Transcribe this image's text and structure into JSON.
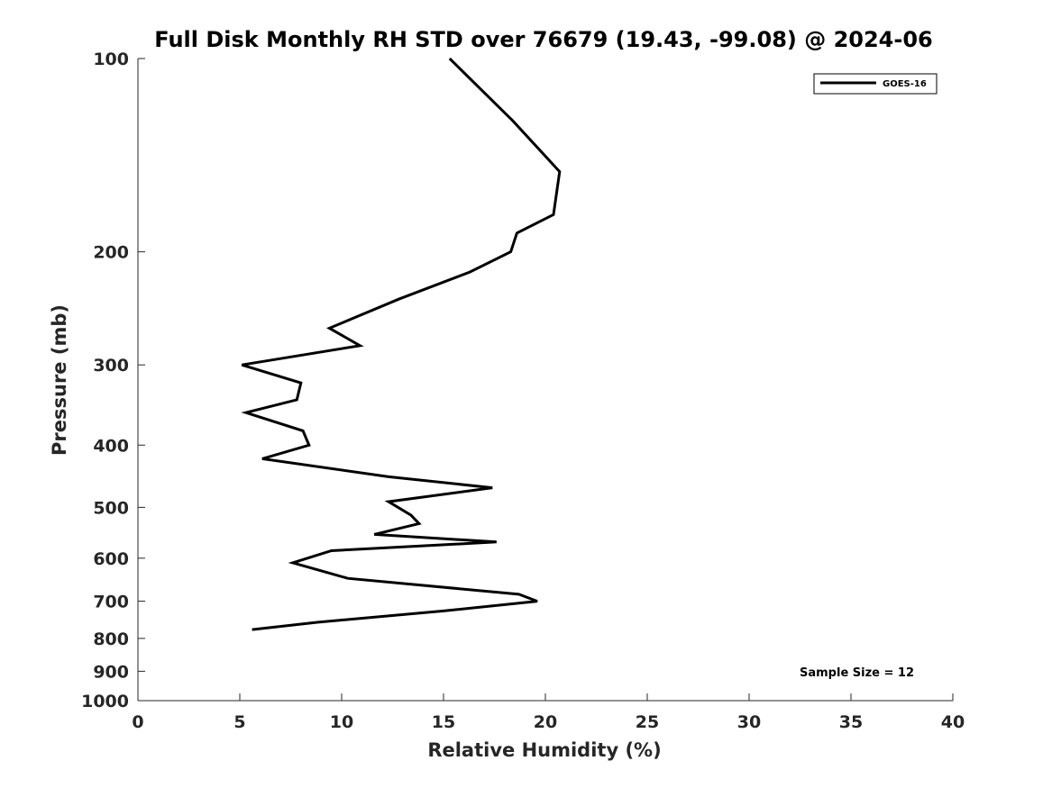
{
  "chart_data": {
    "type": "line",
    "title": "Full Disk Monthly RH STD over 76679 (19.43, -99.08) @ 2024-06",
    "xlabel": "Relative Humidity (%)",
    "ylabel": "Pressure (mb)",
    "xlim": [
      0,
      40
    ],
    "ylim": [
      100,
      1000
    ],
    "y_scale": "log",
    "y_reversed": true,
    "x_ticks": [
      0,
      5,
      10,
      15,
      20,
      25,
      30,
      35,
      40
    ],
    "x_tick_labels": [
      "0",
      "5",
      "10",
      "15",
      "20",
      "25",
      "30",
      "35",
      "40"
    ],
    "y_ticks": [
      100,
      200,
      300,
      400,
      500,
      600,
      700,
      800,
      900,
      1000
    ],
    "y_tick_labels": [
      "100",
      "200",
      "300",
      "400",
      "500",
      "600",
      "700",
      "800",
      "900",
      "1000"
    ],
    "grid": false,
    "legend_position": "top-right",
    "series": [
      {
        "name": "GOES-16",
        "color": "#000000",
        "points": [
          [
            15.3,
            100
          ],
          [
            18.4,
            125
          ],
          [
            20.7,
            150
          ],
          [
            20.4,
            175
          ],
          [
            18.6,
            187
          ],
          [
            18.3,
            200
          ],
          [
            16.3,
            215
          ],
          [
            12.8,
            237
          ],
          [
            9.4,
            263
          ],
          [
            10.9,
            280
          ],
          [
            5.1,
            300
          ],
          [
            8.0,
            320
          ],
          [
            7.8,
            340
          ],
          [
            5.3,
            356
          ],
          [
            8.1,
            380
          ],
          [
            8.4,
            400
          ],
          [
            6.1,
            420
          ],
          [
            12.3,
            448
          ],
          [
            17.4,
            466
          ],
          [
            12.3,
            490
          ],
          [
            13.4,
            514
          ],
          [
            13.8,
            530
          ],
          [
            11.6,
            551
          ],
          [
            17.6,
            566
          ],
          [
            9.5,
            584
          ],
          [
            7.6,
            610
          ],
          [
            10.3,
            645
          ],
          [
            18.7,
            683
          ],
          [
            19.6,
            700
          ],
          [
            15.0,
            725
          ],
          [
            8.8,
            755
          ],
          [
            5.6,
            775
          ]
        ]
      }
    ],
    "annotation": "Sample Size = 12"
  }
}
